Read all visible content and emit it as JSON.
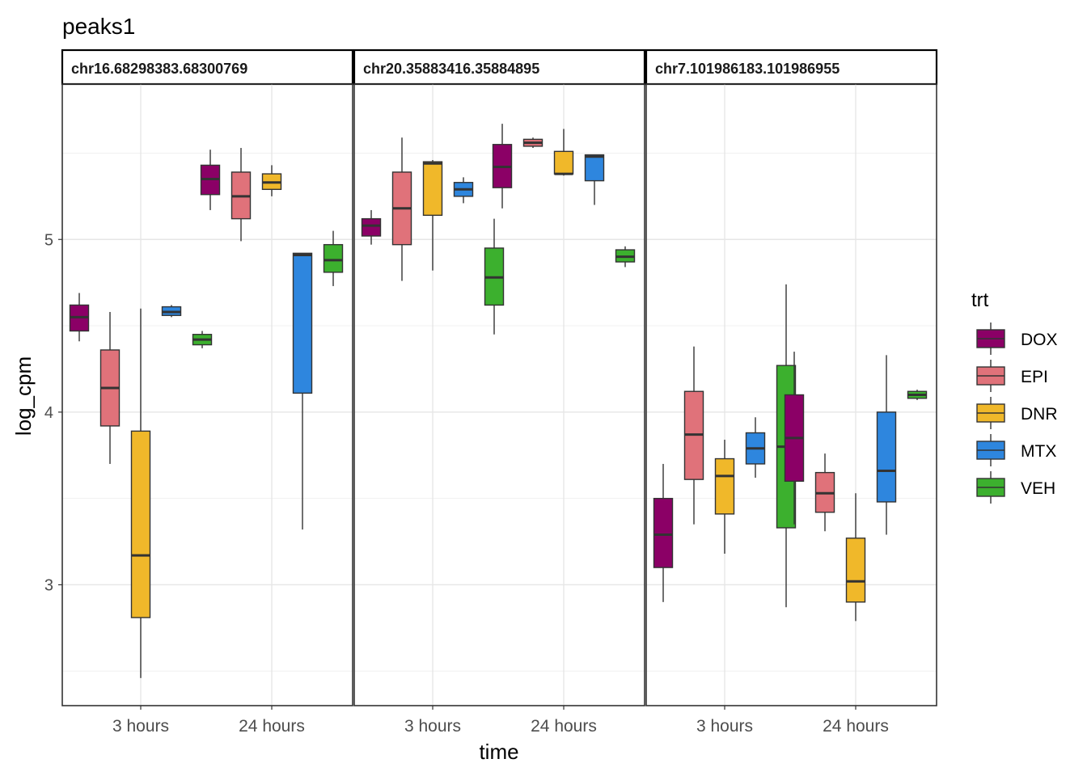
{
  "chart_data": {
    "type": "boxplot",
    "title": "peaks1",
    "xlabel": "time",
    "ylabel": "log_cpm",
    "ylim": [
      2.3,
      5.9
    ],
    "yticks": [
      3,
      4,
      5
    ],
    "grid": true,
    "legend_position": "right",
    "legend_title": "trt",
    "categories": [
      "3 hours",
      "24 hours"
    ],
    "treatments": [
      {
        "name": "DOX",
        "color": "#8B0066"
      },
      {
        "name": "EPI",
        "color": "#E0727A"
      },
      {
        "name": "DNR",
        "color": "#F0B82A"
      },
      {
        "name": "MTX",
        "color": "#2E86DE"
      },
      {
        "name": "VEH",
        "color": "#3CB02E"
      }
    ],
    "panels": [
      {
        "label": "chr16.68298383.68300769",
        "boxes": [
          {
            "time": "3 hours",
            "trt": "DOX",
            "min": 4.41,
            "q1": 4.47,
            "median": 4.55,
            "q3": 4.62,
            "max": 4.69
          },
          {
            "time": "3 hours",
            "trt": "EPI",
            "min": 3.7,
            "q1": 3.92,
            "median": 4.14,
            "q3": 4.36,
            "max": 4.58
          },
          {
            "time": "3 hours",
            "trt": "DNR",
            "min": 2.46,
            "q1": 2.81,
            "median": 3.17,
            "q3": 3.89,
            "max": 4.6
          },
          {
            "time": "3 hours",
            "trt": "MTX",
            "min": 4.55,
            "q1": 4.56,
            "median": 4.58,
            "q3": 4.61,
            "max": 4.62
          },
          {
            "time": "3 hours",
            "trt": "VEH",
            "min": 4.37,
            "q1": 4.39,
            "median": 4.42,
            "q3": 4.45,
            "max": 4.47
          },
          {
            "time": "24 hours",
            "trt": "DOX",
            "min": 5.17,
            "q1": 5.26,
            "median": 5.35,
            "q3": 5.43,
            "max": 5.52
          },
          {
            "time": "24 hours",
            "trt": "EPI",
            "min": 4.99,
            "q1": 5.12,
            "median": 5.25,
            "q3": 5.39,
            "max": 5.53
          },
          {
            "time": "24 hours",
            "trt": "DNR",
            "min": 5.25,
            "q1": 5.29,
            "median": 5.33,
            "q3": 5.38,
            "max": 5.43
          },
          {
            "time": "24 hours",
            "trt": "MTX",
            "min": 3.32,
            "q1": 4.11,
            "median": 4.91,
            "q3": 4.92,
            "max": 4.92
          },
          {
            "time": "24 hours",
            "trt": "VEH",
            "min": 4.73,
            "q1": 4.81,
            "median": 4.88,
            "q3": 4.97,
            "max": 5.05
          }
        ]
      },
      {
        "label": "chr20.35883416.35884895",
        "boxes": [
          {
            "time": "3 hours",
            "trt": "DOX",
            "min": 4.97,
            "q1": 5.02,
            "median": 5.08,
            "q3": 5.12,
            "max": 5.17
          },
          {
            "time": "3 hours",
            "trt": "EPI",
            "min": 4.76,
            "q1": 4.97,
            "median": 5.18,
            "q3": 5.39,
            "max": 5.59
          },
          {
            "time": "3 hours",
            "trt": "DNR",
            "min": 4.82,
            "q1": 5.14,
            "median": 5.44,
            "q3": 5.45,
            "max": 5.46
          },
          {
            "time": "3 hours",
            "trt": "MTX",
            "min": 5.21,
            "q1": 5.25,
            "median": 5.29,
            "q3": 5.33,
            "max": 5.36
          },
          {
            "time": "3 hours",
            "trt": "VEH",
            "min": 4.45,
            "q1": 4.62,
            "median": 4.78,
            "q3": 4.95,
            "max": 5.12
          },
          {
            "time": "24 hours",
            "trt": "DOX",
            "min": 5.18,
            "q1": 5.3,
            "median": 5.42,
            "q3": 5.55,
            "max": 5.67
          },
          {
            "time": "24 hours",
            "trt": "EPI",
            "min": 5.53,
            "q1": 5.54,
            "median": 5.56,
            "q3": 5.58,
            "max": 5.59
          },
          {
            "time": "24 hours",
            "trt": "DNR",
            "min": 5.37,
            "q1": 5.38,
            "median": 5.38,
            "q3": 5.51,
            "max": 5.64
          },
          {
            "time": "24 hours",
            "trt": "MTX",
            "min": 5.2,
            "q1": 5.34,
            "median": 5.48,
            "q3": 5.49,
            "max": 5.49
          },
          {
            "time": "24 hours",
            "trt": "VEH",
            "min": 4.84,
            "q1": 4.87,
            "median": 4.9,
            "q3": 4.94,
            "max": 4.96
          }
        ]
      },
      {
        "label": "chr7.101986183.101986955",
        "boxes": [
          {
            "time": "3 hours",
            "trt": "DOX",
            "min": 2.9,
            "q1": 3.1,
            "median": 3.29,
            "q3": 3.5,
            "max": 3.7
          },
          {
            "time": "3 hours",
            "trt": "EPI",
            "min": 3.35,
            "q1": 3.61,
            "median": 3.87,
            "q3": 4.12,
            "max": 4.38
          },
          {
            "time": "3 hours",
            "trt": "DNR",
            "min": 3.18,
            "q1": 3.41,
            "median": 3.63,
            "q3": 3.73,
            "max": 3.84
          },
          {
            "time": "3 hours",
            "trt": "MTX",
            "min": 3.62,
            "q1": 3.7,
            "median": 3.79,
            "q3": 3.88,
            "max": 3.97
          },
          {
            "time": "3 hours",
            "trt": "VEH",
            "min": 2.87,
            "q1": 3.33,
            "median": 3.8,
            "q3": 4.27,
            "max": 4.74
          },
          {
            "time": "24 hours",
            "trt": "DOX",
            "min": 3.35,
            "q1": 3.6,
            "median": 3.85,
            "q3": 4.1,
            "max": 4.35
          },
          {
            "time": "24 hours",
            "trt": "EPI",
            "min": 3.31,
            "q1": 3.42,
            "median": 3.53,
            "q3": 3.65,
            "max": 3.76
          },
          {
            "time": "24 hours",
            "trt": "DNR",
            "min": 2.79,
            "q1": 2.9,
            "median": 3.02,
            "q3": 3.27,
            "max": 3.53
          },
          {
            "time": "24 hours",
            "trt": "MTX",
            "min": 3.29,
            "q1": 3.48,
            "median": 3.66,
            "q3": 4.0,
            "max": 4.33
          },
          {
            "time": "24 hours",
            "trt": "VEH",
            "min": 4.07,
            "q1": 4.08,
            "median": 4.1,
            "q3": 4.12,
            "max": 4.13
          }
        ]
      }
    ]
  }
}
